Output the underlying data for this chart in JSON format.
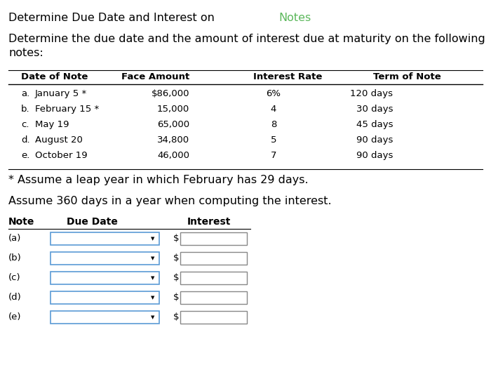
{
  "title_black": "Determine Due Date and Interest on ",
  "title_green": "Notes",
  "subtitle_line1": "Determine the due date and the amount of interest due at maturity on the following",
  "subtitle_line2": "notes:",
  "table_headers": [
    "Date of Note",
    "Face Amount",
    "Interest Rate",
    "Term of Note"
  ],
  "table_rows": [
    [
      "a.",
      "January 5 *",
      "$86,000",
      "6%",
      "120 days"
    ],
    [
      "b.",
      "February 15 *",
      "15,000",
      "4",
      "30 days"
    ],
    [
      "c.",
      "May 19",
      "65,000",
      "8",
      "45 days"
    ],
    [
      "d.",
      "August 20",
      "34,800",
      "5",
      "90 days"
    ],
    [
      "e.",
      "October 19",
      "46,000",
      "7",
      "90 days"
    ]
  ],
  "footnote": "* Assume a leap year in which February has 29 days.",
  "assumption": "Assume 360 days in a year when computing the interest.",
  "answer_table_headers": [
    "Note",
    "Due Date",
    "Interest"
  ],
  "answer_rows": [
    "(a)",
    "(b)",
    "(c)",
    "(d)",
    "(e)"
  ],
  "bg_color": "#ffffff",
  "text_color": "#000000",
  "green_color": "#5cb85c",
  "header_line_color": "#000000",
  "input_box_color": "#ffffff",
  "input_border_color": "#5b9bd5",
  "dropdown_border_color": "#5b9bd5",
  "dollar_sign": "$",
  "title_fontsize": 11.5,
  "body_fontsize": 11.5,
  "table_header_fontsize": 9.5,
  "table_body_fontsize": 9.5,
  "ans_header_fontsize": 10
}
